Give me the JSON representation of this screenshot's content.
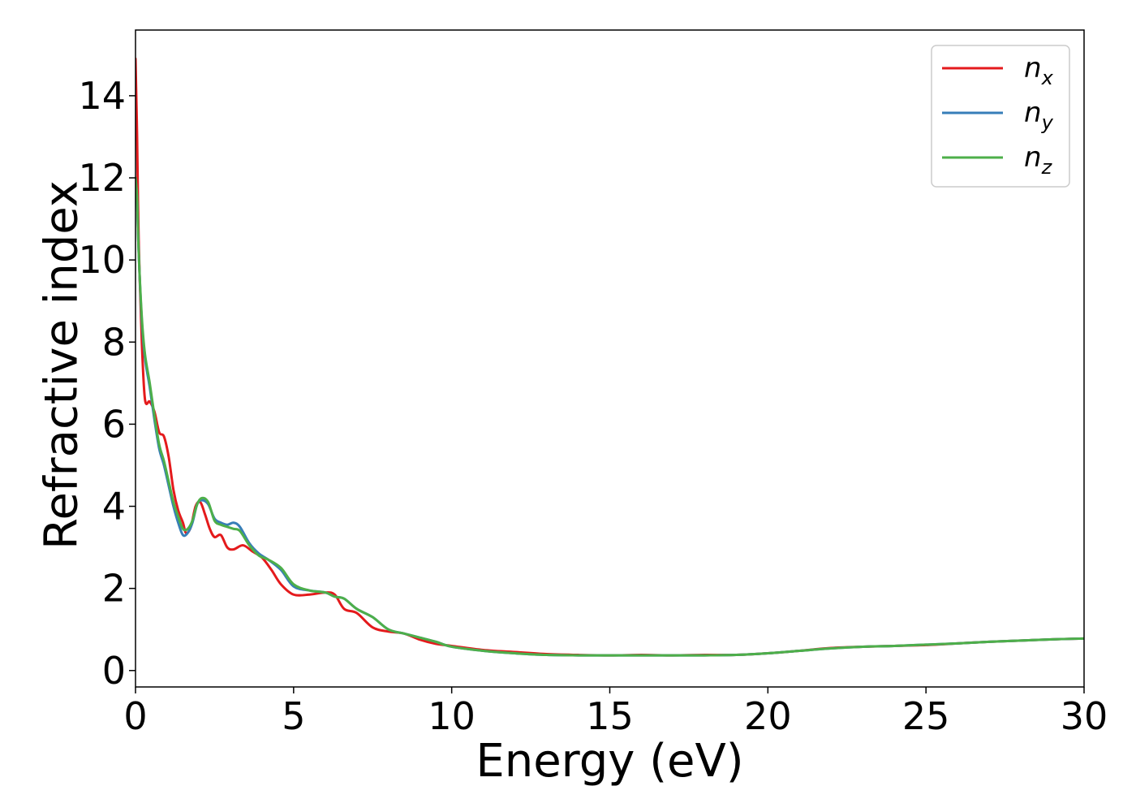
{
  "chart_data": {
    "type": "line",
    "title": "",
    "xlabel": "Energy (eV)",
    "ylabel": "Refractive index",
    "xlim": [
      0,
      30
    ],
    "ylim": [
      -0.4,
      15.6
    ],
    "xticks": [
      0,
      5,
      10,
      15,
      20,
      25,
      30
    ],
    "yticks": [
      0,
      2,
      4,
      6,
      8,
      10,
      12,
      14
    ],
    "grid": false,
    "legend_position": "top-right",
    "series": [
      {
        "name": "n_x",
        "label_base": "n",
        "label_sub": "x",
        "color": "#e41a1c",
        "x": [
          0.0,
          0.05,
          0.1,
          0.2,
          0.3,
          0.45,
          0.6,
          0.75,
          0.9,
          1.05,
          1.2,
          1.35,
          1.5,
          1.6,
          1.75,
          1.9,
          2.05,
          2.2,
          2.35,
          2.5,
          2.7,
          2.9,
          3.1,
          3.4,
          3.7,
          4.0,
          4.3,
          4.6,
          5.0,
          5.5,
          6.0,
          6.3,
          6.6,
          7.0,
          7.5,
          8.0,
          8.5,
          9.0,
          9.5,
          10.0,
          11.0,
          12.0,
          13.0,
          14.0,
          15.0,
          16.0,
          17.0,
          18.0,
          19.0,
          20.0,
          21.0,
          22.0,
          23.0,
          24.0,
          25.0,
          26.0,
          27.0,
          28.0,
          29.0,
          30.0
        ],
        "y": [
          14.9,
          13.0,
          10.5,
          8.0,
          6.6,
          6.55,
          6.3,
          5.8,
          5.7,
          5.2,
          4.4,
          3.9,
          3.6,
          3.35,
          3.5,
          4.0,
          4.1,
          3.8,
          3.45,
          3.25,
          3.3,
          3.0,
          2.95,
          3.05,
          2.9,
          2.75,
          2.45,
          2.1,
          1.85,
          1.85,
          1.9,
          1.85,
          1.5,
          1.4,
          1.05,
          0.95,
          0.9,
          0.75,
          0.65,
          0.6,
          0.5,
          0.45,
          0.4,
          0.38,
          0.37,
          0.38,
          0.37,
          0.38,
          0.38,
          0.42,
          0.48,
          0.55,
          0.58,
          0.6,
          0.62,
          0.66,
          0.7,
          0.73,
          0.76,
          0.78
        ]
      },
      {
        "name": "n_y",
        "label_base": "n",
        "label_sub": "y",
        "color": "#377eb8",
        "x": [
          0.0,
          0.05,
          0.1,
          0.2,
          0.3,
          0.45,
          0.6,
          0.75,
          0.9,
          1.05,
          1.2,
          1.35,
          1.5,
          1.65,
          1.8,
          1.95,
          2.1,
          2.3,
          2.5,
          2.7,
          2.9,
          3.1,
          3.3,
          3.6,
          3.9,
          4.2,
          4.6,
          5.0,
          5.5,
          6.0,
          6.3,
          6.6,
          7.0,
          7.5,
          8.0,
          8.5,
          9.0,
          9.5,
          10.0,
          11.0,
          12.0,
          13.0,
          14.0,
          15.0,
          16.0,
          17.0,
          18.0,
          19.0,
          20.0,
          21.0,
          22.0,
          23.0,
          24.0,
          25.0,
          26.0,
          27.0,
          28.0,
          29.0,
          30.0
        ],
        "y": [
          12.0,
          11.5,
          10.2,
          8.5,
          7.6,
          6.9,
          6.1,
          5.4,
          5.0,
          4.5,
          4.0,
          3.6,
          3.3,
          3.35,
          3.6,
          4.05,
          4.15,
          4.05,
          3.7,
          3.6,
          3.55,
          3.6,
          3.5,
          3.1,
          2.85,
          2.7,
          2.45,
          2.05,
          1.95,
          1.9,
          1.8,
          1.75,
          1.5,
          1.3,
          1.0,
          0.9,
          0.8,
          0.7,
          0.58,
          0.48,
          0.42,
          0.38,
          0.37,
          0.37,
          0.37,
          0.37,
          0.37,
          0.38,
          0.42,
          0.48,
          0.54,
          0.58,
          0.6,
          0.63,
          0.66,
          0.7,
          0.73,
          0.76,
          0.78
        ]
      },
      {
        "name": "n_z",
        "label_base": "n",
        "label_sub": "z",
        "color": "#4daf4a",
        "x": [
          0.0,
          0.05,
          0.1,
          0.2,
          0.3,
          0.45,
          0.6,
          0.75,
          0.9,
          1.05,
          1.2,
          1.35,
          1.5,
          1.65,
          1.8,
          1.95,
          2.1,
          2.3,
          2.5,
          2.7,
          2.9,
          3.1,
          3.3,
          3.6,
          3.9,
          4.2,
          4.6,
          5.0,
          5.5,
          6.0,
          6.3,
          6.6,
          7.0,
          7.5,
          8.0,
          8.5,
          9.0,
          9.5,
          10.0,
          11.0,
          12.0,
          13.0,
          14.0,
          15.0,
          16.0,
          17.0,
          18.0,
          19.0,
          20.0,
          21.0,
          22.0,
          23.0,
          24.0,
          25.0,
          26.0,
          27.0,
          28.0,
          29.0,
          30.0
        ],
        "y": [
          12.0,
          11.5,
          10.2,
          8.6,
          7.7,
          7.0,
          6.2,
          5.5,
          5.1,
          4.6,
          4.1,
          3.75,
          3.45,
          3.45,
          3.65,
          4.05,
          4.2,
          4.1,
          3.65,
          3.55,
          3.5,
          3.45,
          3.4,
          3.05,
          2.8,
          2.7,
          2.5,
          2.1,
          1.95,
          1.9,
          1.8,
          1.75,
          1.5,
          1.3,
          1.0,
          0.9,
          0.8,
          0.7,
          0.58,
          0.48,
          0.42,
          0.38,
          0.37,
          0.37,
          0.37,
          0.37,
          0.37,
          0.38,
          0.42,
          0.48,
          0.54,
          0.58,
          0.6,
          0.63,
          0.66,
          0.7,
          0.73,
          0.76,
          0.78
        ]
      }
    ]
  }
}
